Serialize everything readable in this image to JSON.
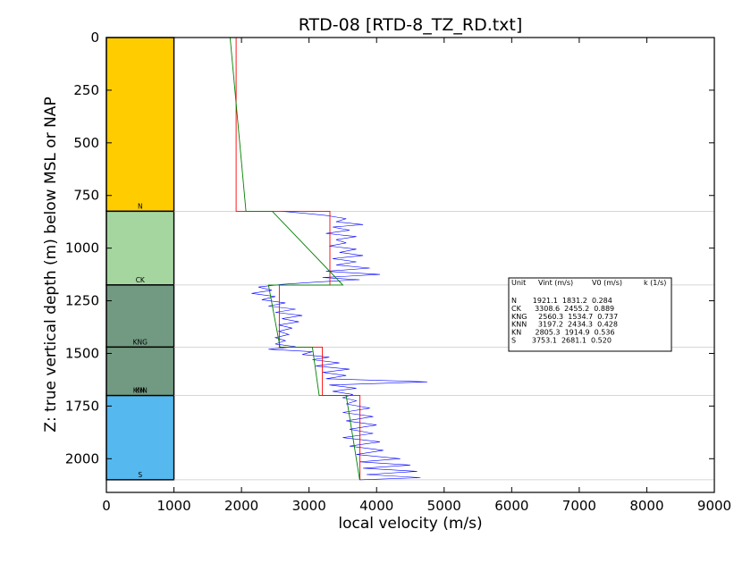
{
  "chart_data": {
    "type": "line",
    "title": "RTD-08 [RTD-8_TZ_RD.txt]",
    "xlabel": "local velocity (m/s)",
    "ylabel": "Z: true vertical depth (m) below MSL or NAP",
    "xlim": [
      0,
      9000
    ],
    "ylim": [
      2160,
      0
    ],
    "y_inverted": true,
    "x_ticks": [
      0,
      1000,
      2000,
      3000,
      4000,
      5000,
      6000,
      7000,
      8000,
      9000
    ],
    "y_ticks": [
      0,
      250,
      500,
      750,
      1000,
      1250,
      1500,
      1750,
      2000
    ],
    "units": [
      {
        "name": "N",
        "top": 0,
        "base": 825,
        "color": "#ffcc00",
        "vint": 1921.1,
        "v0": 1831.2,
        "k": 0.284
      },
      {
        "name": "CK",
        "top": 825,
        "base": 1175,
        "color": "#a5d6a0",
        "vint": 3308.6,
        "v0": 2455.2,
        "k": 0.889
      },
      {
        "name": "KNG",
        "top": 1175,
        "base": 1470,
        "color": "#729a82",
        "vint": 2560.3,
        "v0": 1534.7,
        "k": 0.737
      },
      {
        "name": "KNN",
        "top": 1470,
        "base": 1700,
        "color": "#729a82",
        "vint": 3197.2,
        "v0": 2434.3,
        "k": 0.428
      },
      {
        "name": "KN",
        "top": 1700,
        "base": 1700,
        "color": "#729a82",
        "vint": 2805.3,
        "v0": 1914.9,
        "k": 0.536
      },
      {
        "name": "S",
        "top": 1700,
        "base": 2100,
        "color": "#55b8ee",
        "vint": 3753.1,
        "v0": 2681.1,
        "k": 0.52
      }
    ],
    "velocity_log": [
      [
        2600,
        825
      ],
      [
        2950,
        835
      ],
      [
        3250,
        845
      ],
      [
        3550,
        860
      ],
      [
        3400,
        875
      ],
      [
        3800,
        888
      ],
      [
        3350,
        900
      ],
      [
        3600,
        915
      ],
      [
        3250,
        930
      ],
      [
        3700,
        945
      ],
      [
        3400,
        960
      ],
      [
        3550,
        975
      ],
      [
        3300,
        990
      ],
      [
        3700,
        1005
      ],
      [
        3450,
        1020
      ],
      [
        3800,
        1035
      ],
      [
        3350,
        1050
      ],
      [
        3700,
        1065
      ],
      [
        3400,
        1080
      ],
      [
        3900,
        1095
      ],
      [
        3250,
        1110
      ],
      [
        4050,
        1125
      ],
      [
        3200,
        1140
      ],
      [
        3750,
        1150
      ],
      [
        3150,
        1160
      ],
      [
        2600,
        1172
      ],
      [
        2250,
        1185
      ],
      [
        2450,
        1200
      ],
      [
        2150,
        1215
      ],
      [
        2500,
        1230
      ],
      [
        2300,
        1245
      ],
      [
        2650,
        1260
      ],
      [
        2400,
        1275
      ],
      [
        2800,
        1290
      ],
      [
        2500,
        1305
      ],
      [
        2900,
        1320
      ],
      [
        2600,
        1335
      ],
      [
        2850,
        1350
      ],
      [
        2550,
        1365
      ],
      [
        2750,
        1380
      ],
      [
        2550,
        1395
      ],
      [
        2700,
        1410
      ],
      [
        2500,
        1425
      ],
      [
        2650,
        1440
      ],
      [
        2500,
        1455
      ],
      [
        2800,
        1468
      ],
      [
        2400,
        1480
      ],
      [
        3050,
        1492
      ],
      [
        2900,
        1505
      ],
      [
        3300,
        1518
      ],
      [
        3050,
        1530
      ],
      [
        3450,
        1545
      ],
      [
        3100,
        1560
      ],
      [
        3600,
        1575
      ],
      [
        3200,
        1590
      ],
      [
        3550,
        1605
      ],
      [
        3250,
        1620
      ],
      [
        4750,
        1635
      ],
      [
        3300,
        1650
      ],
      [
        3700,
        1665
      ],
      [
        3350,
        1680
      ],
      [
        3650,
        1695
      ],
      [
        3500,
        1710
      ],
      [
        3700,
        1725
      ],
      [
        3550,
        1740
      ],
      [
        3900,
        1760
      ],
      [
        3500,
        1780
      ],
      [
        3950,
        1800
      ],
      [
        3550,
        1820
      ],
      [
        4000,
        1840
      ],
      [
        3600,
        1860
      ],
      [
        3950,
        1880
      ],
      [
        3500,
        1900
      ],
      [
        4050,
        1920
      ],
      [
        3600,
        1940
      ],
      [
        4100,
        1960
      ],
      [
        3700,
        1980
      ],
      [
        4350,
        2000
      ],
      [
        3750,
        2015
      ],
      [
        4500,
        2030
      ],
      [
        3800,
        2045
      ],
      [
        4600,
        2060
      ],
      [
        3850,
        2075
      ],
      [
        4650,
        2090
      ],
      [
        3750,
        2100
      ]
    ],
    "interval_velocity": [
      [
        1921.1,
        0
      ],
      [
        1921.1,
        825
      ],
      [
        3308.6,
        825
      ],
      [
        3308.6,
        1175
      ],
      [
        2560.3,
        1175
      ],
      [
        2560.3,
        1470
      ],
      [
        3197.2,
        1470
      ],
      [
        3197.2,
        1700
      ],
      [
        3753.1,
        1700
      ],
      [
        3753.1,
        2100
      ]
    ],
    "linear_model": [
      [
        1831.2,
        0
      ],
      [
        2065.5,
        825
      ],
      [
        2455.2,
        825
      ],
      [
        3500,
        1175
      ],
      [
        2400,
        1175
      ],
      [
        2570,
        1470
      ],
      [
        3050,
        1470
      ],
      [
        3150,
        1700
      ],
      [
        3550,
        1700
      ],
      [
        3750,
        2100
      ]
    ],
    "boundary_depths": [
      825,
      1175,
      1470,
      1700,
      2100
    ],
    "table": {
      "header": {
        "unit": "Unit",
        "vint": "Vint (m/s)",
        "v0": "V0 (m/s)",
        "k": "k (1/s)"
      },
      "rows": [
        "N       1921.1  1831.2  0.284",
        "CK      3308.6  2455.2  0.889",
        "KNG     2560.3  1534.7  0.737",
        "KNN     3197.2  2434.3  0.428",
        "KN      2805.3  1914.9  0.536",
        "S       3753.1  2681.1  0.520"
      ]
    },
    "colors": {
      "velocity_log": "#0000ff",
      "interval_velocity": "#ff0000",
      "linear_model": "#008000",
      "boundary": "#c8c8c8"
    }
  }
}
